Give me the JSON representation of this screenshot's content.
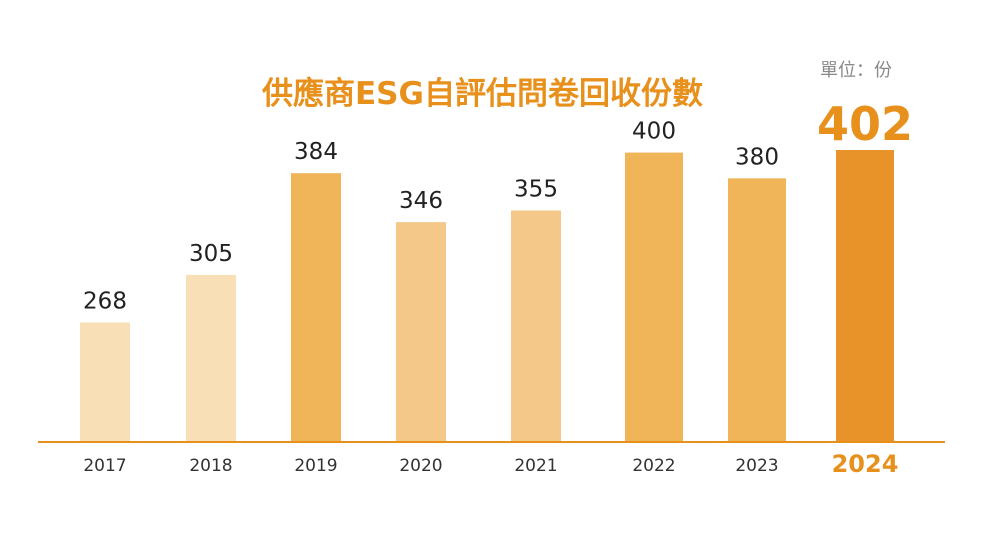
{
  "chart_data": {
    "type": "bar",
    "title": "供應商ESG自評估問卷回收份數",
    "unit_label": "單位：份",
    "xlabel": "",
    "ylabel": "",
    "categories": [
      "2017",
      "2018",
      "2019",
      "2020",
      "2021",
      "2022",
      "2023",
      "2024"
    ],
    "values": [
      268,
      305,
      384,
      346,
      355,
      400,
      380,
      402
    ],
    "colors": [
      "#f8dfb5",
      "#f8dfb5",
      "#f0b459",
      "#f3c888",
      "#f3c888",
      "#f0b459",
      "#f0b459",
      "#e8922a"
    ],
    "highlight_index": 7,
    "highlight_color": "#e8901c",
    "axis_color": "#e8901c",
    "ylim": [
      176,
      402
    ],
    "grid": false,
    "legend": "none"
  }
}
